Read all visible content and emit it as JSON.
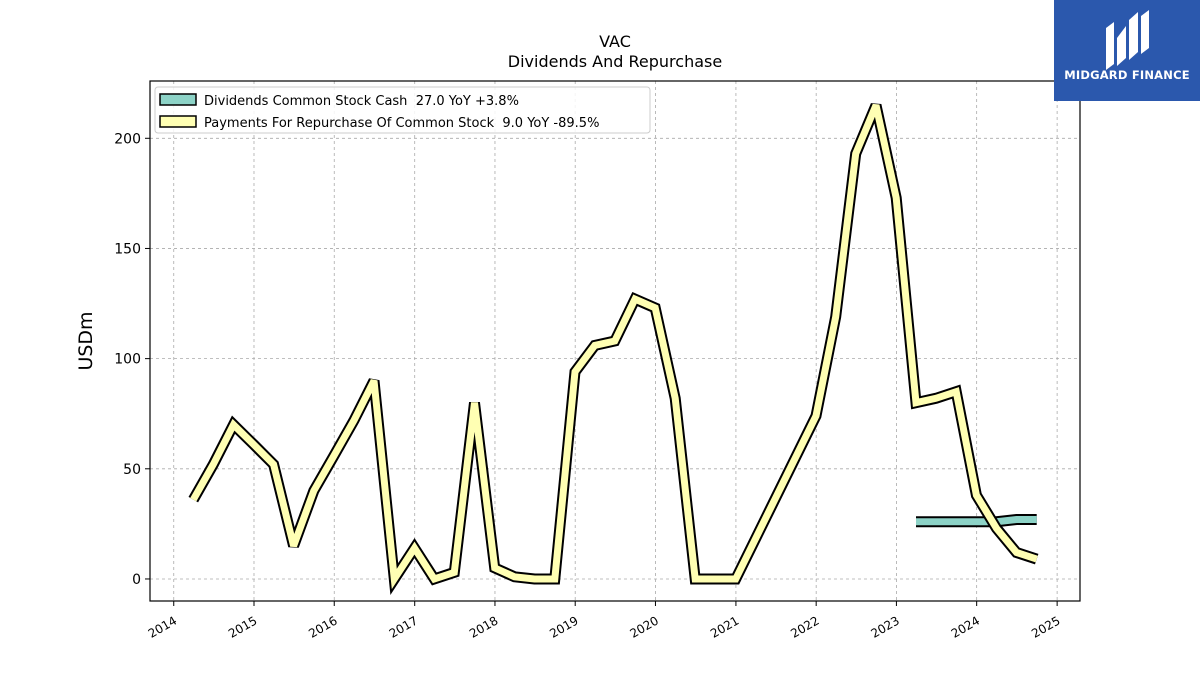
{
  "logo": {
    "text": "MIDGARD FINANCE",
    "bg_color": "#2b58ad"
  },
  "chart_data": {
    "type": "line",
    "title": "VAC",
    "subtitle": "Dividends And Repurchase",
    "ylabel": "USDm",
    "xlabel": "",
    "x_ticks": [
      "2014",
      "2015",
      "2016",
      "2017",
      "2018",
      "2019",
      "2020",
      "2021",
      "2022",
      "2023",
      "2024",
      "2025"
    ],
    "y_ticks": [
      0,
      50,
      100,
      150,
      200
    ],
    "xlim": [
      "2013-09-15",
      "2025-04-15"
    ],
    "ylim": [
      -10,
      226
    ],
    "grid": true,
    "legend_position": "top-left",
    "series": [
      {
        "name": "Dividends Common Stock Cash  27.0 YoY +3.8%",
        "color": "#8dd3c7",
        "dates": [
          "2023-03-31",
          "2023-06-30",
          "2023-09-30",
          "2023-12-31",
          "2024-03-31",
          "2024-06-30",
          "2024-09-30"
        ],
        "values": [
          26,
          26,
          26,
          26,
          26,
          27,
          27
        ]
      },
      {
        "name": "Payments For Repurchase Of Common Stock  9.0 YoY -89.5%",
        "color": "#ffffb3",
        "dates": [
          "2014-03-31",
          "2014-06-30",
          "2014-09-30",
          "2014-12-31",
          "2015-03-31",
          "2015-06-30",
          "2015-09-30",
          "2015-12-31",
          "2016-03-31",
          "2016-06-30",
          "2016-09-30",
          "2016-12-31",
          "2017-03-31",
          "2017-06-30",
          "2017-09-30",
          "2017-12-31",
          "2018-03-31",
          "2018-06-30",
          "2018-09-30",
          "2018-12-31",
          "2019-03-31",
          "2019-06-30",
          "2019-09-30",
          "2019-12-31",
          "2020-03-31",
          "2020-06-30",
          "2020-09-30",
          "2020-12-31",
          "2021-12-31",
          "2022-03-31",
          "2022-06-30",
          "2022-09-30",
          "2022-12-31",
          "2023-03-31",
          "2023-06-30",
          "2023-09-30",
          "2023-12-31",
          "2024-03-31",
          "2024-06-30",
          "2024-09-30"
        ],
        "values": [
          36,
          52,
          70,
          61,
          52,
          15,
          40,
          56,
          72,
          90,
          0,
          14,
          0,
          3,
          80,
          5,
          1,
          0,
          0,
          94,
          106,
          108,
          127,
          123,
          82,
          0,
          0,
          0,
          74,
          119,
          193,
          215,
          173,
          80,
          82,
          85,
          38,
          23,
          12,
          9
        ]
      }
    ]
  }
}
